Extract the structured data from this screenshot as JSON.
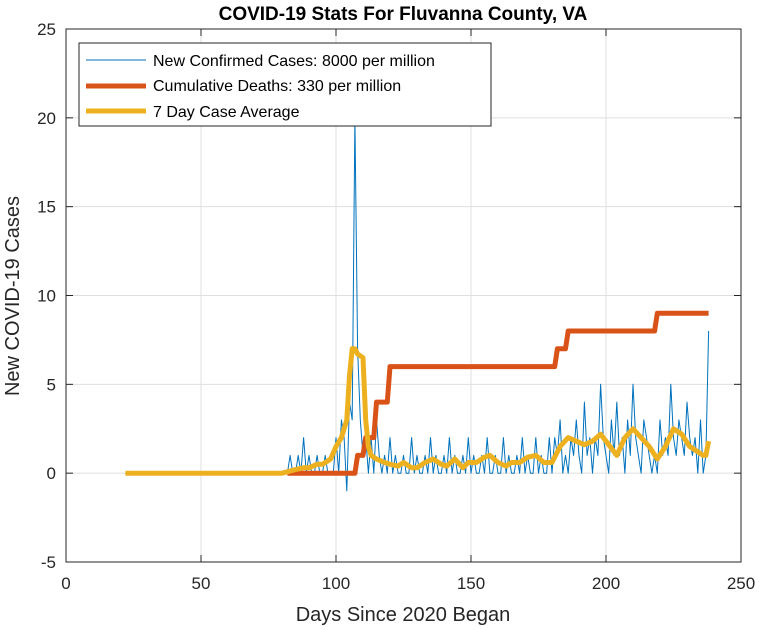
{
  "chart_data": {
    "type": "line",
    "title": "COVID-19 Stats For Fluvanna County, VA",
    "xlabel": "Days Since 2020 Began",
    "ylabel": "New COVID-19 Cases",
    "xlim": [
      0,
      250
    ],
    "ylim": [
      -5,
      25
    ],
    "xticks": [
      "0",
      "50",
      "100",
      "150",
      "200",
      "250"
    ],
    "yticks": [
      "-5",
      "0",
      "5",
      "10",
      "15",
      "20",
      "25"
    ],
    "grid": true,
    "legend_position": "top-left",
    "colors": {
      "new_cases": "#0072BD",
      "deaths": "#D95319",
      "average": "#EDB120",
      "grid": "#dfdfdf",
      "axes": "#262626"
    },
    "series": [
      {
        "name": "New Confirmed Cases: 8000 per million",
        "x": [
          22,
          80,
          82,
          83,
          84,
          85,
          86,
          87,
          88,
          89,
          90,
          91,
          92,
          93,
          94,
          95,
          96,
          97,
          98,
          99,
          100,
          101,
          102,
          103,
          104,
          105,
          106,
          107,
          108,
          109,
          110,
          111,
          112,
          113,
          114,
          115,
          116,
          117,
          118,
          119,
          120,
          121,
          122,
          123,
          124,
          125,
          126,
          127,
          128,
          129,
          130,
          131,
          132,
          133,
          134,
          135,
          136,
          137,
          138,
          139,
          140,
          141,
          142,
          143,
          144,
          145,
          146,
          147,
          148,
          149,
          150,
          151,
          152,
          153,
          154,
          155,
          156,
          157,
          158,
          159,
          160,
          161,
          162,
          163,
          164,
          165,
          166,
          167,
          168,
          169,
          170,
          171,
          172,
          173,
          174,
          175,
          176,
          177,
          178,
          179,
          180,
          181,
          182,
          183,
          184,
          185,
          186,
          187,
          188,
          189,
          190,
          191,
          192,
          193,
          194,
          195,
          196,
          197,
          198,
          199,
          200,
          201,
          202,
          203,
          204,
          205,
          206,
          207,
          208,
          209,
          210,
          211,
          212,
          213,
          214,
          215,
          216,
          217,
          218,
          219,
          220,
          221,
          222,
          223,
          224,
          225,
          226,
          227,
          228,
          229,
          230,
          231,
          232,
          233,
          234,
          235,
          236,
          237,
          238
        ],
        "y": [
          0,
          0,
          0,
          1,
          0,
          0,
          1,
          0,
          2,
          0,
          1,
          0,
          0,
          1,
          0,
          0,
          1,
          0,
          0,
          0,
          2,
          0,
          3,
          2,
          -1,
          4,
          3,
          20,
          7,
          3,
          1,
          2,
          0,
          2,
          0,
          3,
          1,
          0,
          1,
          0,
          2,
          0,
          1,
          0,
          0,
          1,
          0,
          0,
          2,
          0,
          1,
          0,
          0,
          1,
          0,
          2,
          0,
          1,
          0,
          0,
          1,
          0,
          2,
          0,
          1,
          0,
          0,
          1,
          0,
          2,
          0,
          1,
          0,
          0,
          1,
          0,
          2,
          0,
          0,
          1,
          0,
          0,
          2,
          0,
          1,
          0,
          0,
          1,
          0,
          2,
          0,
          1,
          0,
          0,
          2,
          0,
          1,
          0,
          0,
          2,
          0,
          2,
          1,
          3,
          0,
          1,
          0,
          2,
          1,
          3,
          1,
          0,
          4,
          1,
          2,
          0,
          2,
          1,
          5,
          2,
          1,
          0,
          3,
          1,
          4,
          1,
          2,
          0,
          3,
          1,
          5,
          2,
          1,
          0,
          3,
          2,
          1,
          0,
          1,
          0,
          3,
          1,
          2,
          1,
          5,
          2,
          1,
          3,
          2,
          1,
          4,
          2,
          1,
          2,
          0,
          3,
          0,
          1,
          8
        ],
        "line_width": 1
      },
      {
        "name": "Cumulative Deaths: 330 per million",
        "x": [
          82,
          103,
          104,
          107,
          108,
          110,
          111,
          114,
          115,
          119,
          120,
          181,
          182,
          185,
          186,
          218,
          219,
          238
        ],
        "y": [
          0,
          0,
          0,
          0,
          1,
          1,
          2,
          2,
          4,
          4,
          6,
          6,
          7,
          7,
          8,
          8,
          9,
          9
        ],
        "line_width": 5,
        "step": true
      },
      {
        "name": "7 Day Case Average",
        "x": [
          22,
          80,
          85,
          88,
          90,
          93,
          95,
          98,
          100,
          102,
          104,
          105,
          106,
          107,
          108,
          110,
          111,
          112,
          113,
          115,
          118,
          120,
          123,
          125,
          128,
          130,
          133,
          136,
          139,
          141,
          144,
          147,
          149,
          152,
          155,
          157,
          160,
          163,
          165,
          168,
          171,
          174,
          177,
          180,
          183,
          186,
          189,
          192,
          195,
          198,
          201,
          204,
          207,
          210,
          213,
          216,
          219,
          222,
          225,
          228,
          231,
          234,
          236,
          237,
          238
        ],
        "y": [
          0,
          0,
          0.2,
          0.3,
          0.3,
          0.5,
          0.5,
          0.8,
          1.5,
          2.0,
          3.0,
          5.5,
          7.0,
          7.0,
          6.7,
          6.5,
          3.0,
          1.5,
          1.0,
          0.8,
          0.6,
          0.5,
          0.4,
          0.6,
          0.3,
          0.3,
          0.6,
          0.8,
          0.5,
          0.4,
          0.8,
          0.3,
          0.6,
          0.6,
          0.9,
          1.0,
          0.6,
          0.4,
          0.6,
          0.6,
          0.9,
          1.0,
          0.6,
          0.6,
          1.5,
          2.0,
          1.8,
          1.6,
          1.8,
          2.2,
          1.6,
          1.0,
          2.0,
          2.5,
          2.0,
          1.5,
          0.8,
          1.5,
          2.5,
          2.2,
          1.5,
          1.2,
          1.0,
          1.0,
          1.8
        ],
        "line_width": 5
      }
    ]
  }
}
